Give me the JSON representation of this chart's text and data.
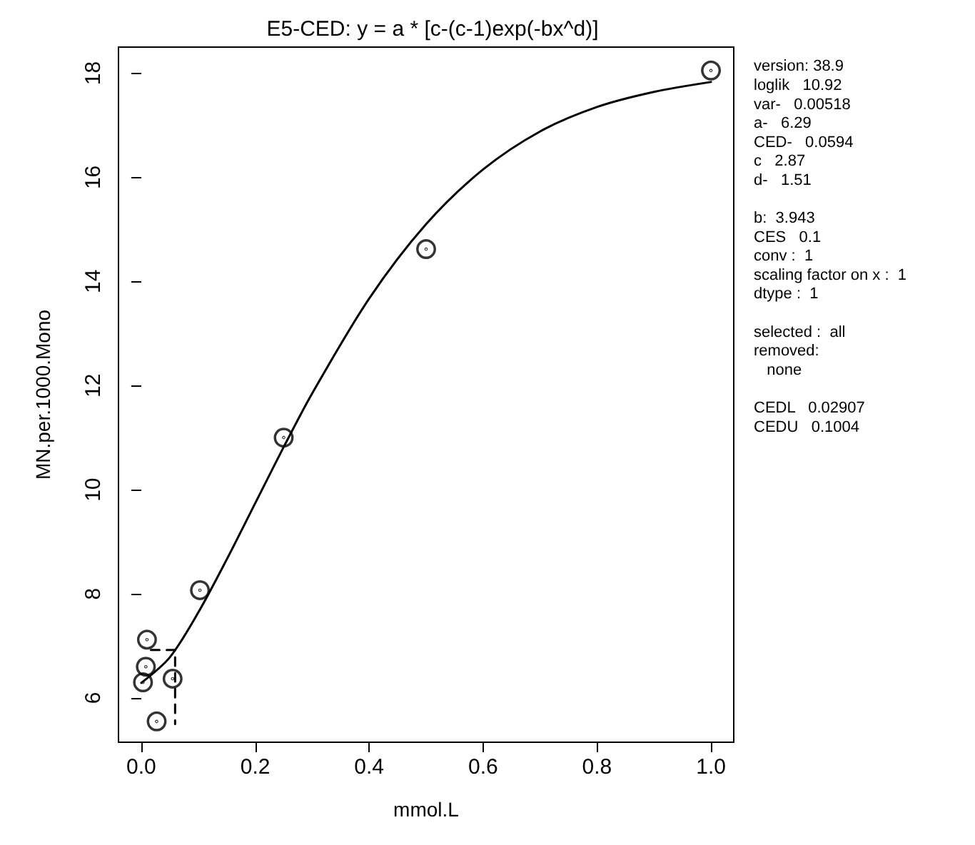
{
  "chart_data": {
    "type": "scatter",
    "title": "E5-CED: y = a * [c-(c-1)exp(-bx^d)]",
    "xlabel": "mmol.L",
    "ylabel": "MN.per.1000.Mono",
    "xlim": [
      -0.04,
      1.04
    ],
    "xticks": [
      {
        "value": 0,
        "label": "0.0"
      },
      0.2,
      0.4,
      0.6,
      0.8,
      {
        "value": 1,
        "label": "1.0"
      }
    ],
    "ylim": [
      5.15,
      18.5
    ],
    "yticks": [
      6,
      8,
      10,
      12,
      14,
      16,
      18
    ],
    "grid": false,
    "series": [
      {
        "marker": "circle",
        "color": "#000000",
        "x": [
          0.003,
          0.008,
          0.01,
          0.027,
          0.055,
          0.103,
          0.25,
          0.5,
          1.0
        ],
        "values": [
          6.3,
          6.6,
          7.12,
          5.55,
          6.37,
          8.07,
          11.0,
          14.62,
          18.05
        ]
      },
      {
        "type": "line",
        "marker": "none",
        "line_style": "solid",
        "color": "#000000",
        "x": [
          0,
          0.05,
          0.1,
          0.15,
          0.2,
          0.25,
          0.3,
          0.4,
          0.5,
          0.6,
          0.7,
          0.8,
          0.9,
          1.0
        ],
        "values": [
          6.29,
          6.78,
          7.64,
          8.66,
          9.74,
          10.82,
          11.85,
          13.67,
          15.1,
          16.15,
          16.88,
          17.35,
          17.64,
          17.83
        ]
      },
      {
        "type": "line",
        "marker": "none",
        "line_style": "dashed",
        "color": "#000000",
        "x": [
          0.017,
          0.0594,
          0.0594
        ],
        "values": [
          6.92,
          6.92,
          5.5
        ]
      }
    ],
    "annotations": [
      "version: 38.9\nloglik   10.92\nvar-   0.00518\na-   6.29\nCED-   0.0594\nc   2.87\nd-   1.51",
      "b:  3.943\nCES   0.1\nconv :  1\nscaling factor on x :  1\ndtype :  1",
      "selected :  all\nremoved:\n   none",
      "CEDL   0.02907\nCEDU   0.1004"
    ]
  }
}
